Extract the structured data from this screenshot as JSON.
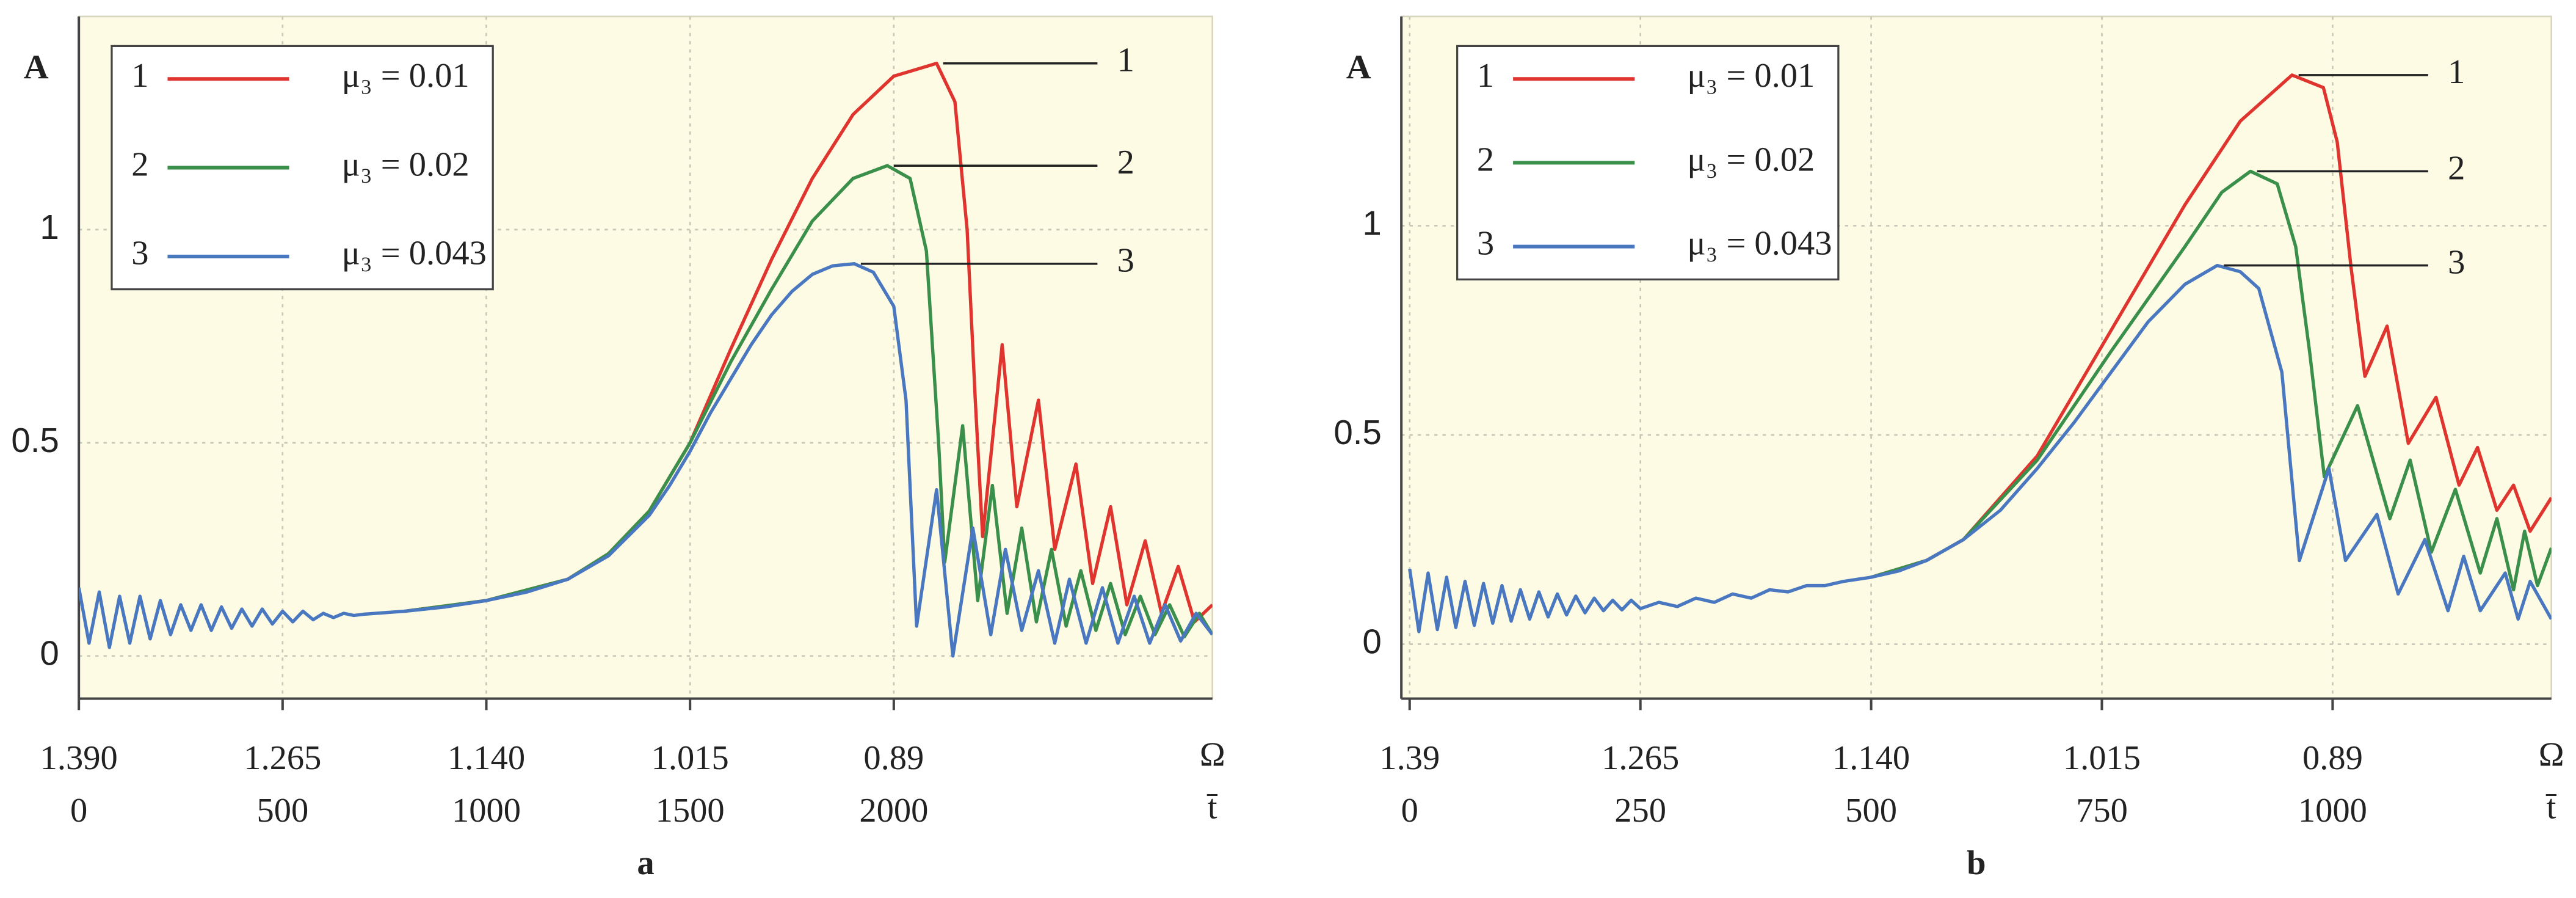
{
  "chart_data": [
    {
      "type": "line",
      "y_label": "A",
      "x_label": "Ω",
      "x2_label": "t̄",
      "panel_label": "a",
      "xlim": [
        0,
        2782
      ],
      "ylim": [
        -0.1,
        1.5
      ],
      "xticks": [
        0,
        500,
        1000,
        1500,
        2000
      ],
      "omega_ticks": [
        "1.390",
        "1.265",
        "1.140",
        "1.015",
        "0.89"
      ],
      "yticks": [
        0,
        0.5,
        1
      ],
      "grid": true,
      "series": [
        {
          "label": "1",
          "name": "μ₃ = 0.01",
          "color": "#e0342f",
          "x": [
            800,
            1000,
            1200,
            1300,
            1400,
            1500,
            1600,
            1700,
            1800,
            1900,
            2000,
            2105,
            2150,
            2180,
            2200,
            2218,
            2266,
            2302,
            2355,
            2395,
            2447,
            2488,
            2532,
            2572,
            2617,
            2657,
            2698,
            2738,
            2782
          ],
          "values": [
            0.105,
            0.13,
            0.18,
            0.24,
            0.34,
            0.5,
            0.72,
            0.93,
            1.12,
            1.27,
            1.36,
            1.39,
            1.3,
            1.0,
            0.6,
            0.28,
            0.73,
            0.35,
            0.6,
            0.25,
            0.45,
            0.17,
            0.35,
            0.12,
            0.27,
            0.1,
            0.21,
            0.08,
            0.12
          ]
        },
        {
          "label": "2",
          "name": "μ₃ = 0.02",
          "color": "#3a8f4a",
          "x": [
            800,
            1000,
            1200,
            1300,
            1400,
            1500,
            1600,
            1700,
            1800,
            1900,
            1984,
            2040,
            2080,
            2110,
            2125,
            2169,
            2206,
            2242,
            2278,
            2314,
            2350,
            2387,
            2423,
            2459,
            2496,
            2532,
            2568,
            2605,
            2641,
            2677,
            2713,
            2750,
            2782
          ],
          "values": [
            0.105,
            0.13,
            0.18,
            0.24,
            0.34,
            0.5,
            0.69,
            0.86,
            1.02,
            1.12,
            1.15,
            1.12,
            0.95,
            0.5,
            0.22,
            0.54,
            0.13,
            0.4,
            0.1,
            0.3,
            0.08,
            0.25,
            0.07,
            0.2,
            0.06,
            0.17,
            0.05,
            0.14,
            0.05,
            0.12,
            0.045,
            0.1,
            0.05
          ]
        },
        {
          "label": "3",
          "name": "μ₃ = 0.043",
          "color": "#4a78c0",
          "x": [
            0,
            25,
            50,
            75,
            100,
            125,
            150,
            175,
            200,
            225,
            250,
            275,
            300,
            325,
            350,
            375,
            400,
            425,
            450,
            475,
            500,
            525,
            550,
            575,
            600,
            625,
            650,
            675,
            700,
            800,
            900,
            1000,
            1100,
            1200,
            1300,
            1400,
            1450,
            1500,
            1550,
            1600,
            1650,
            1700,
            1750,
            1800,
            1850,
            1903,
            1950,
            2000,
            2030,
            2056,
            2105,
            2145,
            2194,
            2238,
            2274,
            2314,
            2355,
            2395,
            2431,
            2472,
            2512,
            2550,
            2590,
            2628,
            2666,
            2704,
            2742,
            2782
          ],
          "values": [
            0.16,
            0.03,
            0.15,
            0.02,
            0.14,
            0.03,
            0.14,
            0.04,
            0.13,
            0.05,
            0.12,
            0.06,
            0.12,
            0.06,
            0.115,
            0.065,
            0.11,
            0.07,
            0.11,
            0.075,
            0.105,
            0.08,
            0.105,
            0.085,
            0.1,
            0.09,
            0.1,
            0.095,
            0.098,
            0.105,
            0.115,
            0.13,
            0.15,
            0.18,
            0.235,
            0.33,
            0.4,
            0.48,
            0.57,
            0.65,
            0.73,
            0.8,
            0.855,
            0.895,
            0.915,
            0.92,
            0.9,
            0.82,
            0.6,
            0.07,
            0.39,
            0.0,
            0.3,
            0.05,
            0.25,
            0.06,
            0.2,
            0.03,
            0.18,
            0.03,
            0.16,
            0.03,
            0.14,
            0.03,
            0.12,
            0.035,
            0.1,
            0.05
          ]
        }
      ]
    },
    {
      "type": "line",
      "y_label": "A",
      "x_label": "Ω",
      "x2_label": "t̄",
      "panel_label": "b",
      "xlim": [
        -9,
        1237
      ],
      "ylim": [
        -0.13,
        1.5
      ],
      "xticks": [
        0,
        250,
        500,
        750,
        1000
      ],
      "omega_ticks": [
        "1.39",
        "1.265",
        "1.140",
        "1.015",
        "0.89"
      ],
      "yticks": [
        0,
        0.5,
        1
      ],
      "grid": true,
      "series": [
        {
          "label": "1",
          "name": "μ₃ = 0.01",
          "color": "#e0342f",
          "x": [
            500,
            560,
            600,
            680,
            760,
            840,
            900,
            956,
            990,
            1005,
            1020,
            1035,
            1059,
            1082,
            1112,
            1137,
            1157,
            1178,
            1196,
            1214,
            1237
          ],
          "values": [
            0.16,
            0.2,
            0.25,
            0.45,
            0.75,
            1.05,
            1.25,
            1.36,
            1.33,
            1.2,
            0.9,
            0.64,
            0.76,
            0.48,
            0.59,
            0.38,
            0.47,
            0.32,
            0.38,
            0.27,
            0.35
          ]
        },
        {
          "label": "2",
          "name": "μ₃ = 0.02",
          "color": "#3a8f4a",
          "x": [
            500,
            560,
            600,
            680,
            760,
            840,
            880,
            911,
            940,
            960,
            975,
            991,
            1027,
            1062,
            1084,
            1107,
            1133,
            1160,
            1178,
            1196,
            1208,
            1222,
            1237
          ],
          "values": [
            0.16,
            0.2,
            0.25,
            0.44,
            0.7,
            0.95,
            1.08,
            1.13,
            1.1,
            0.95,
            0.7,
            0.4,
            0.57,
            0.3,
            0.44,
            0.22,
            0.37,
            0.17,
            0.3,
            0.13,
            0.27,
            0.14,
            0.23
          ]
        },
        {
          "label": "3",
          "name": "μ₃ = 0.043",
          "color": "#4a78c0",
          "x": [
            0,
            10,
            20,
            30,
            40,
            50,
            60,
            70,
            80,
            90,
            100,
            110,
            120,
            130,
            140,
            150,
            160,
            170,
            180,
            190,
            200,
            210,
            220,
            230,
            240,
            250,
            270,
            290,
            310,
            330,
            350,
            370,
            390,
            410,
            430,
            450,
            470,
            500,
            530,
            560,
            600,
            640,
            680,
            720,
            760,
            800,
            840,
            875,
            900,
            920,
            945,
            964,
            996,
            1014,
            1048,
            1071,
            1100,
            1125,
            1142,
            1160,
            1187,
            1201,
            1214,
            1237
          ],
          "values": [
            0.18,
            0.03,
            0.17,
            0.035,
            0.16,
            0.04,
            0.15,
            0.045,
            0.145,
            0.05,
            0.14,
            0.055,
            0.13,
            0.06,
            0.125,
            0.065,
            0.12,
            0.07,
            0.115,
            0.075,
            0.11,
            0.08,
            0.105,
            0.082,
            0.105,
            0.085,
            0.1,
            0.09,
            0.11,
            0.1,
            0.12,
            0.11,
            0.13,
            0.125,
            0.14,
            0.14,
            0.15,
            0.16,
            0.175,
            0.2,
            0.25,
            0.32,
            0.42,
            0.53,
            0.65,
            0.77,
            0.86,
            0.905,
            0.89,
            0.85,
            0.65,
            0.2,
            0.42,
            0.2,
            0.31,
            0.12,
            0.25,
            0.08,
            0.21,
            0.08,
            0.17,
            0.06,
            0.15,
            0.06
          ]
        }
      ]
    }
  ]
}
